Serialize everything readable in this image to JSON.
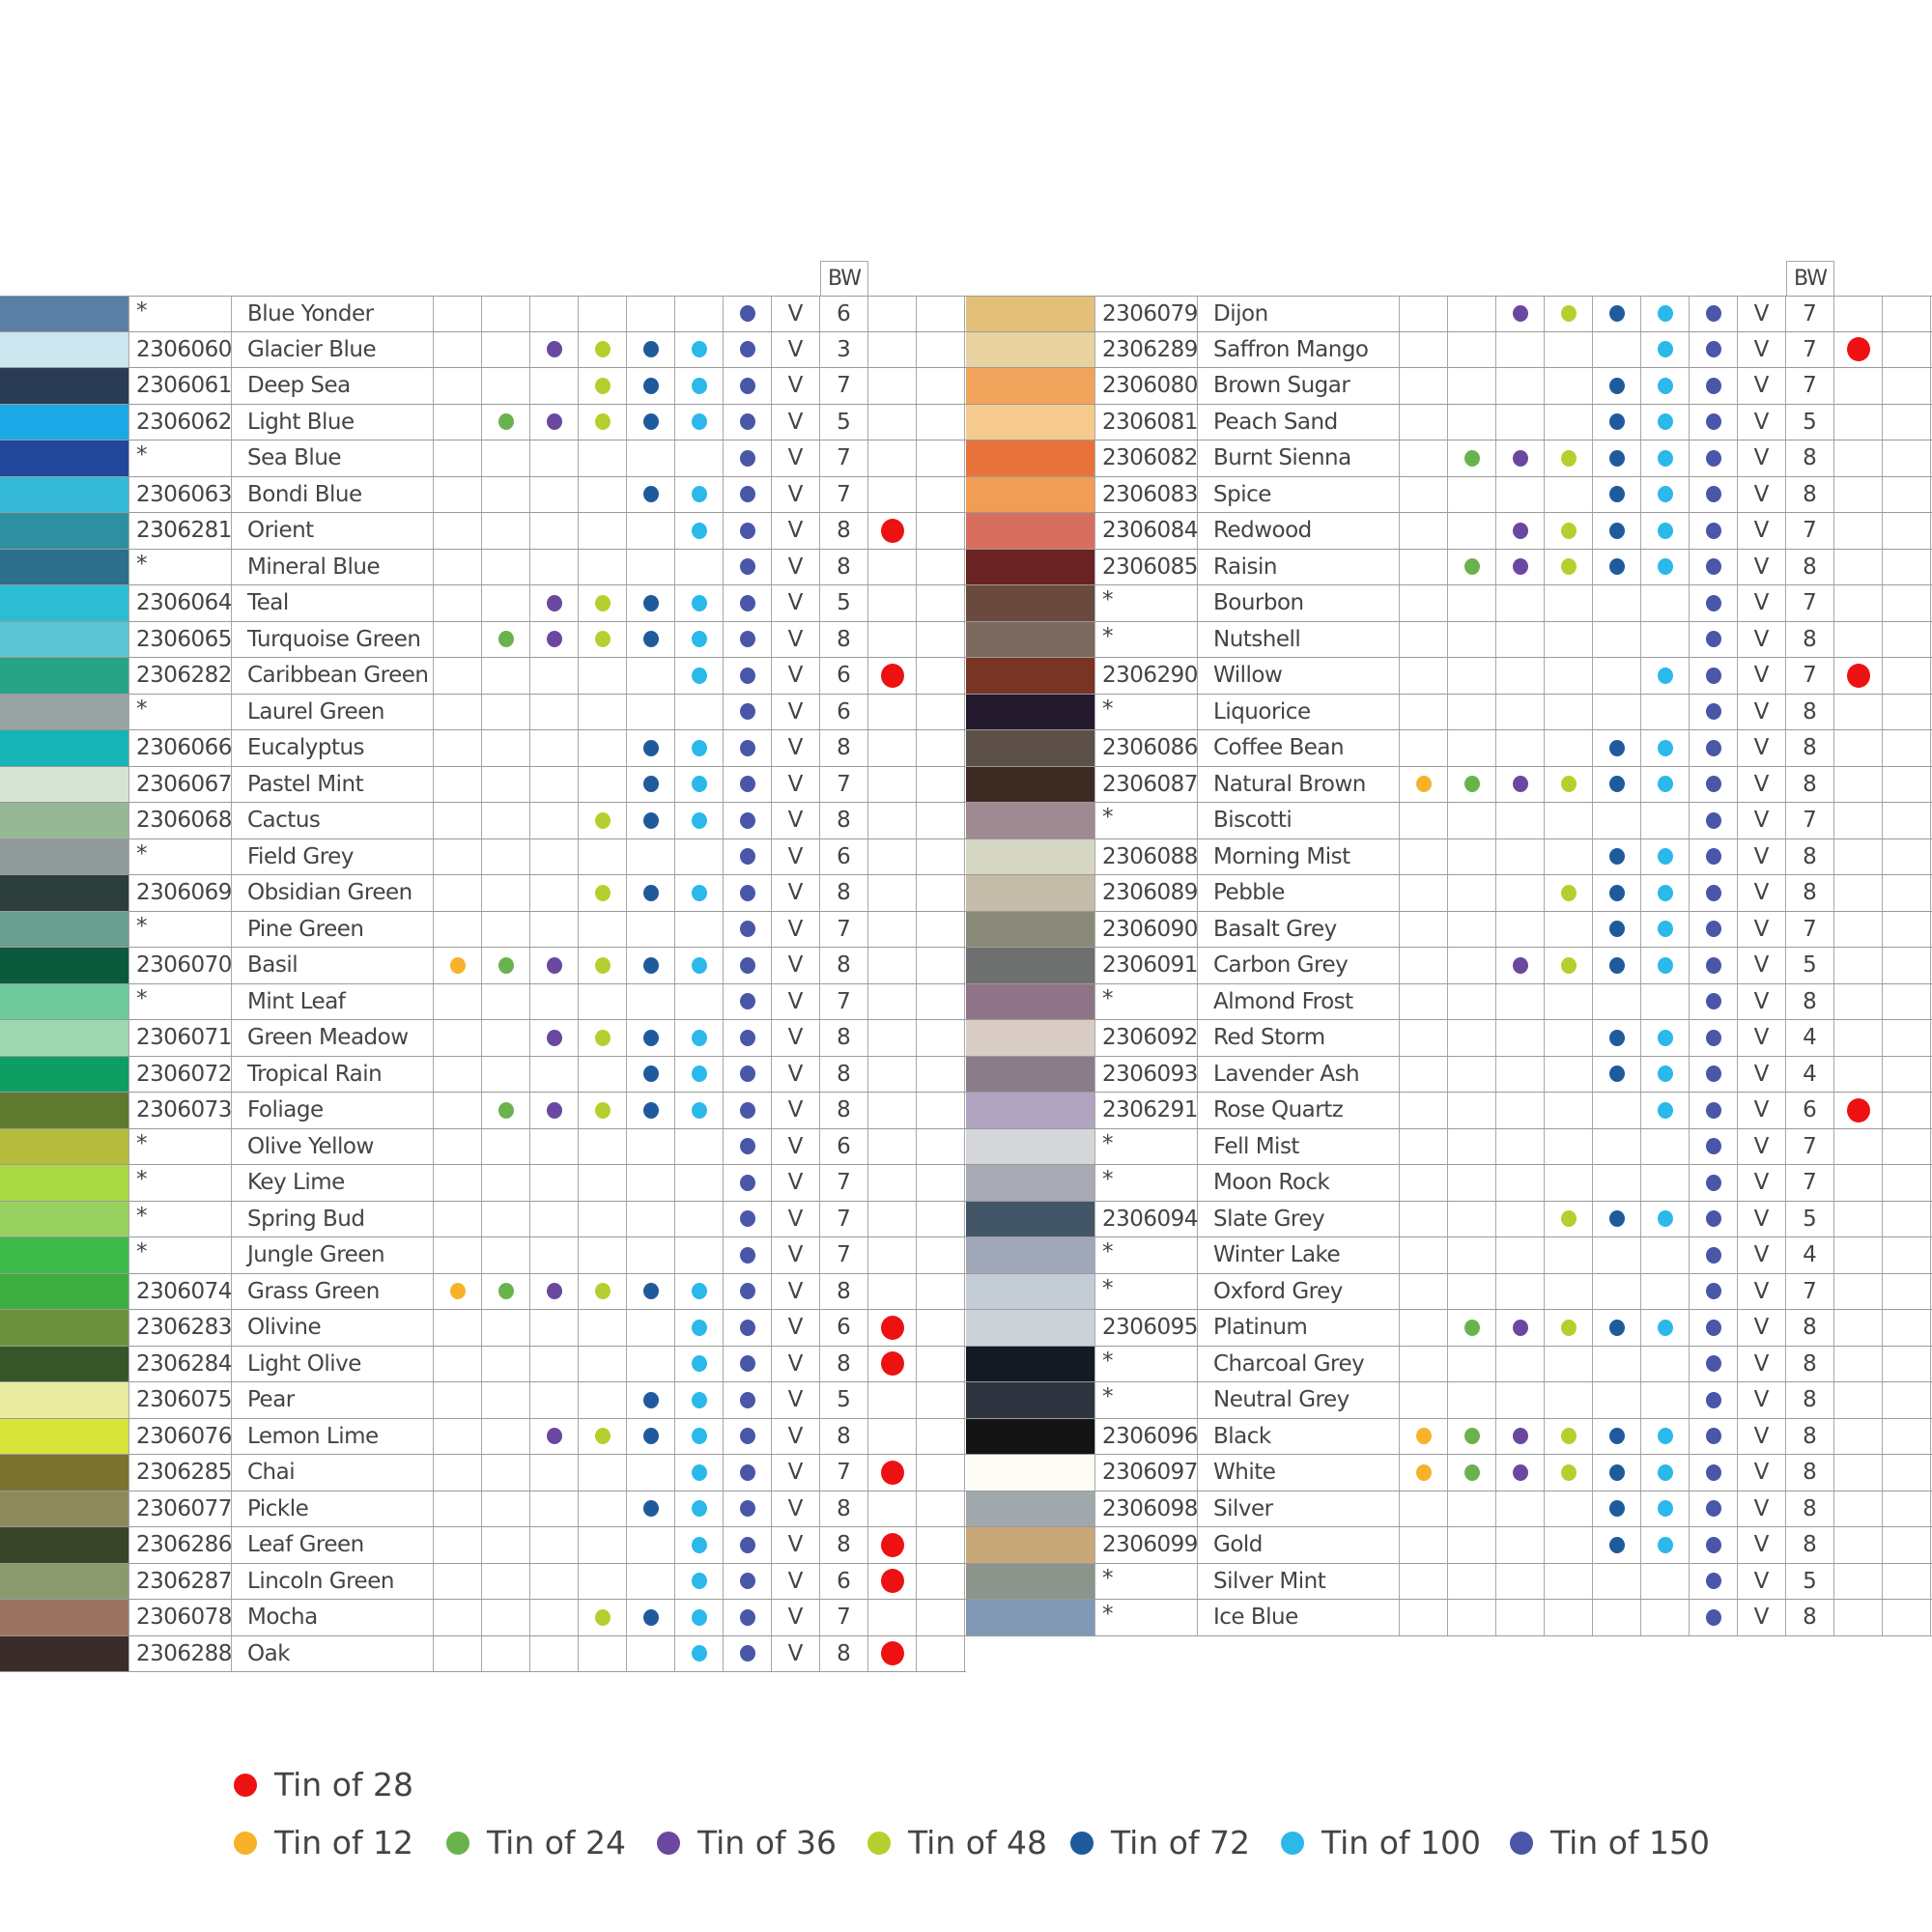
{
  "header": {
    "bw_label": "BW"
  },
  "tin_columns": [
    12,
    24,
    36,
    48,
    72,
    100,
    150
  ],
  "tin_colors": {
    "12": "#f7b22a",
    "24": "#6ab24e",
    "36": "#6a48a0",
    "48": "#b5cf2e",
    "72": "#1f5a9c",
    "100": "#2bb8ea",
    "150": "#4a56a8",
    "28": "#ee1111"
  },
  "legend": {
    "primary": {
      "tin": 28,
      "label": "Tin of 28"
    },
    "items": [
      {
        "tin": 12,
        "label": "Tin of 12"
      },
      {
        "tin": 24,
        "label": "Tin of 24"
      },
      {
        "tin": 36,
        "label": "Tin of 36"
      },
      {
        "tin": 48,
        "label": "Tin of 48"
      },
      {
        "tin": 72,
        "label": "Tin of 72"
      },
      {
        "tin": 100,
        "label": "Tin of 100"
      },
      {
        "tin": 150,
        "label": "Tin of 150"
      }
    ]
  },
  "left_table": [
    {
      "swatch": "#5a7fa6",
      "code": "*",
      "name": "Blue Yonder",
      "tins": [
        150
      ],
      "v": "V",
      "bw": "6"
    },
    {
      "swatch": "#cbe6ef",
      "code": "2306060",
      "name": "Glacier Blue",
      "tins": [
        36,
        48,
        72,
        100,
        150
      ],
      "v": "V",
      "bw": "3"
    },
    {
      "swatch": "#2a3c55",
      "code": "2306061",
      "name": "Deep Sea",
      "tins": [
        48,
        72,
        100,
        150
      ],
      "v": "V",
      "bw": "7"
    },
    {
      "swatch": "#1aa9e6",
      "code": "2306062",
      "name": "Light Blue",
      "tins": [
        24,
        36,
        48,
        72,
        100,
        150
      ],
      "v": "V",
      "bw": "5"
    },
    {
      "swatch": "#22479a",
      "code": "*",
      "name": "Sea Blue",
      "tins": [
        150
      ],
      "v": "V",
      "bw": "7"
    },
    {
      "swatch": "#35b9d8",
      "code": "2306063",
      "name": "Bondi Blue",
      "tins": [
        72,
        100,
        150
      ],
      "v": "V",
      "bw": "7"
    },
    {
      "swatch": "#2e8fa3",
      "code": "2306281",
      "name": "Orient",
      "tins": [
        100,
        150,
        28
      ],
      "v": "V",
      "bw": "8"
    },
    {
      "swatch": "#2c6e8c",
      "code": "*",
      "name": "Mineral Blue",
      "tins": [
        150
      ],
      "v": "V",
      "bw": "8"
    },
    {
      "swatch": "#2cbcd4",
      "code": "2306064",
      "name": "Teal",
      "tins": [
        36,
        48,
        72,
        100,
        150
      ],
      "v": "V",
      "bw": "5"
    },
    {
      "swatch": "#5cc5d4",
      "code": "2306065",
      "name": "Turquoise Green",
      "tins": [
        24,
        36,
        48,
        72,
        100,
        150
      ],
      "v": "V",
      "bw": "8"
    },
    {
      "swatch": "#27a486",
      "code": "2306282",
      "name": "Caribbean Green",
      "tins": [
        100,
        150,
        28
      ],
      "v": "V",
      "bw": "6"
    },
    {
      "swatch": "#9aa3a3",
      "code": "*",
      "name": "Laurel Green",
      "tins": [
        150
      ],
      "v": "V",
      "bw": "6"
    },
    {
      "swatch": "#15b5b5",
      "code": "2306066",
      "name": "Eucalyptus",
      "tins": [
        72,
        100,
        150
      ],
      "v": "V",
      "bw": "8"
    },
    {
      "swatch": "#d5e4d2",
      "code": "2306067",
      "name": "Pastel Mint",
      "tins": [
        72,
        100,
        150
      ],
      "v": "V",
      "bw": "7"
    },
    {
      "swatch": "#96b895",
      "code": "2306068",
      "name": "Cactus",
      "tins": [
        48,
        72,
        100,
        150
      ],
      "v": "V",
      "bw": "8"
    },
    {
      "swatch": "#8e9a9a",
      "code": "*",
      "name": "Field Grey",
      "tins": [
        150
      ],
      "v": "V",
      "bw": "6"
    },
    {
      "swatch": "#2c3e3b",
      "code": "2306069",
      "name": "Obsidian Green",
      "tins": [
        48,
        72,
        100,
        150
      ],
      "v": "V",
      "bw": "8"
    },
    {
      "swatch": "#6a9e8f",
      "code": "*",
      "name": "Pine Green",
      "tins": [
        150
      ],
      "v": "V",
      "bw": "7"
    },
    {
      "swatch": "#0c5a3e",
      "code": "2306070",
      "name": "Basil",
      "tins": [
        12,
        24,
        36,
        48,
        72,
        100,
        150
      ],
      "v": "V",
      "bw": "8"
    },
    {
      "swatch": "#6fca9b",
      "code": "*",
      "name": "Mint Leaf",
      "tins": [
        150
      ],
      "v": "V",
      "bw": "7"
    },
    {
      "swatch": "#9ed8b0",
      "code": "2306071",
      "name": "Green Meadow",
      "tins": [
        36,
        48,
        72,
        100,
        150
      ],
      "v": "V",
      "bw": "8"
    },
    {
      "swatch": "#0e9d63",
      "code": "2306072",
      "name": "Tropical Rain",
      "tins": [
        72,
        100,
        150
      ],
      "v": "V",
      "bw": "8"
    },
    {
      "swatch": "#5e7a2e",
      "code": "2306073",
      "name": "Foliage",
      "tins": [
        24,
        36,
        48,
        72,
        100,
        150
      ],
      "v": "V",
      "bw": "8"
    },
    {
      "swatch": "#b5bb3c",
      "code": "*",
      "name": "Olive Yellow",
      "tins": [
        150
      ],
      "v": "V",
      "bw": "6"
    },
    {
      "swatch": "#abd944",
      "code": "*",
      "name": "Key Lime",
      "tins": [
        150
      ],
      "v": "V",
      "bw": "7"
    },
    {
      "swatch": "#97d160",
      "code": "*",
      "name": "Spring Bud",
      "tins": [
        150
      ],
      "v": "V",
      "bw": "7"
    },
    {
      "swatch": "#3db94a",
      "code": "*",
      "name": "Jungle Green",
      "tins": [
        150
      ],
      "v": "V",
      "bw": "7"
    },
    {
      "swatch": "#3dae40",
      "code": "2306074",
      "name": "Grass Green",
      "tins": [
        12,
        24,
        36,
        48,
        72,
        100,
        150
      ],
      "v": "V",
      "bw": "8"
    },
    {
      "swatch": "#6e9140",
      "code": "2306283",
      "name": "Olivine",
      "tins": [
        100,
        150,
        28
      ],
      "v": "V",
      "bw": "6"
    },
    {
      "swatch": "#36562a",
      "code": "2306284",
      "name": "Light Olive",
      "tins": [
        100,
        150,
        28
      ],
      "v": "V",
      "bw": "8"
    },
    {
      "swatch": "#e9eba0",
      "code": "2306075",
      "name": "Pear",
      "tins": [
        72,
        100,
        150
      ],
      "v": "V",
      "bw": "5"
    },
    {
      "swatch": "#d9e43a",
      "code": "2306076",
      "name": "Lemon Lime",
      "tins": [
        36,
        48,
        72,
        100,
        150
      ],
      "v": "V",
      "bw": "8"
    },
    {
      "swatch": "#7c7330",
      "code": "2306285",
      "name": "Chai",
      "tins": [
        100,
        150,
        28
      ],
      "v": "V",
      "bw": "7"
    },
    {
      "swatch": "#8c8a5a",
      "code": "2306077",
      "name": "Pickle",
      "tins": [
        72,
        100,
        150
      ],
      "v": "V",
      "bw": "8"
    },
    {
      "swatch": "#3a4428",
      "code": "2306286",
      "name": "Leaf Green",
      "tins": [
        100,
        150,
        28
      ],
      "v": "V",
      "bw": "8"
    },
    {
      "swatch": "#8a9a6e",
      "code": "2306287",
      "name": "Lincoln Green",
      "tins": [
        100,
        150,
        28
      ],
      "v": "V",
      "bw": "6"
    },
    {
      "swatch": "#9a7460",
      "code": "2306078",
      "name": "Mocha",
      "tins": [
        48,
        72,
        100,
        150
      ],
      "v": "V",
      "bw": "7"
    },
    {
      "swatch": "#3a2c28",
      "code": "2306288",
      "name": "Oak",
      "tins": [
        100,
        150,
        28
      ],
      "v": "V",
      "bw": "8"
    }
  ],
  "right_table": [
    {
      "swatch": "#e3c07a",
      "code": "2306079",
      "name": "Dijon",
      "tins": [
        36,
        48,
        72,
        100,
        150
      ],
      "v": "V",
      "bw": "7"
    },
    {
      "swatch": "#e8d2a0",
      "code": "2306289",
      "name": "Saffron Mango",
      "tins": [
        100,
        150,
        28
      ],
      "v": "V",
      "bw": "7"
    },
    {
      "swatch": "#f0a35a",
      "code": "2306080",
      "name": "Brown Sugar",
      "tins": [
        72,
        100,
        150
      ],
      "v": "V",
      "bw": "7"
    },
    {
      "swatch": "#f6c98e",
      "code": "2306081",
      "name": "Peach Sand",
      "tins": [
        72,
        100,
        150
      ],
      "v": "V",
      "bw": "5"
    },
    {
      "swatch": "#e8733a",
      "code": "2306082",
      "name": "Burnt Sienna",
      "tins": [
        24,
        36,
        48,
        72,
        100,
        150
      ],
      "v": "V",
      "bw": "8"
    },
    {
      "swatch": "#f19d55",
      "code": "2306083",
      "name": "Spice",
      "tins": [
        72,
        100,
        150
      ],
      "v": "V",
      "bw": "8"
    },
    {
      "swatch": "#d86f5e",
      "code": "2306084",
      "name": "Redwood",
      "tins": [
        36,
        48,
        72,
        100,
        150
      ],
      "v": "V",
      "bw": "7"
    },
    {
      "swatch": "#6a2222",
      "code": "2306085",
      "name": "Raisin",
      "tins": [
        24,
        36,
        48,
        72,
        100,
        150
      ],
      "v": "V",
      "bw": "8"
    },
    {
      "swatch": "#6a4a3c",
      "code": "*",
      "name": "Bourbon",
      "tins": [
        150
      ],
      "v": "V",
      "bw": "7"
    },
    {
      "swatch": "#7a6a60",
      "code": "*",
      "name": "Nutshell",
      "tins": [
        150
      ],
      "v": "V",
      "bw": "8"
    },
    {
      "swatch": "#7a3424",
      "code": "2306290",
      "name": "Willow",
      "tins": [
        100,
        150,
        28
      ],
      "v": "V",
      "bw": "7"
    },
    {
      "swatch": "#221a2c",
      "code": "*",
      "name": "Liquorice",
      "tins": [
        150
      ],
      "v": "V",
      "bw": "8"
    },
    {
      "swatch": "#5c5048",
      "code": "2306086",
      "name": "Coffee Bean",
      "tins": [
        72,
        100,
        150
      ],
      "v": "V",
      "bw": "8"
    },
    {
      "swatch": "#3e2c24",
      "code": "2306087",
      "name": "Natural Brown",
      "tins": [
        12,
        24,
        36,
        48,
        72,
        100,
        150
      ],
      "v": "V",
      "bw": "8"
    },
    {
      "swatch": "#9e8a90",
      "code": "*",
      "name": "Biscotti",
      "tins": [
        150
      ],
      "v": "V",
      "bw": "7"
    },
    {
      "swatch": "#d6d6c4",
      "code": "2306088",
      "name": "Morning Mist",
      "tins": [
        72,
        100,
        150
      ],
      "v": "V",
      "bw": "8"
    },
    {
      "swatch": "#c4bca8",
      "code": "2306089",
      "name": "Pebble",
      "tins": [
        48,
        72,
        100,
        150
      ],
      "v": "V",
      "bw": "8"
    },
    {
      "swatch": "#8a8a7a",
      "code": "2306090",
      "name": "Basalt Grey",
      "tins": [
        72,
        100,
        150
      ],
      "v": "V",
      "bw": "7"
    },
    {
      "swatch": "#6e7070",
      "code": "2306091",
      "name": "Carbon Grey",
      "tins": [
        36,
        48,
        72,
        100,
        150
      ],
      "v": "V",
      "bw": "5"
    },
    {
      "swatch": "#8e7486",
      "code": "*",
      "name": "Almond Frost",
      "tins": [
        150
      ],
      "v": "V",
      "bw": "8"
    },
    {
      "swatch": "#d8ccc4",
      "code": "2306092",
      "name": "Red Storm",
      "tins": [
        72,
        100,
        150
      ],
      "v": "V",
      "bw": "4"
    },
    {
      "swatch": "#8a7c88",
      "code": "2306093",
      "name": "Lavender Ash",
      "tins": [
        72,
        100,
        150
      ],
      "v": "V",
      "bw": "4"
    },
    {
      "swatch": "#b0a4c0",
      "code": "2306291",
      "name": "Rose Quartz",
      "tins": [
        100,
        150,
        28
      ],
      "v": "V",
      "bw": "6"
    },
    {
      "swatch": "#d4d6da",
      "code": "*",
      "name": "Fell Mist",
      "tins": [
        150
      ],
      "v": "V",
      "bw": "7"
    },
    {
      "swatch": "#a8aab4",
      "code": "*",
      "name": "Moon Rock",
      "tins": [
        150
      ],
      "v": "V",
      "bw": "7"
    },
    {
      "swatch": "#435668",
      "code": "2306094",
      "name": "Slate Grey",
      "tins": [
        48,
        72,
        100,
        150
      ],
      "v": "V",
      "bw": "5"
    },
    {
      "swatch": "#a0a8b8",
      "code": "*",
      "name": "Winter Lake",
      "tins": [
        150
      ],
      "v": "V",
      "bw": "4"
    },
    {
      "swatch": "#c4ccd6",
      "code": "*",
      "name": "Oxford Grey",
      "tins": [
        150
      ],
      "v": "V",
      "bw": "7"
    },
    {
      "swatch": "#cdd2d6",
      "code": "2306095",
      "name": "Platinum",
      "tins": [
        24,
        36,
        48,
        72,
        100,
        150
      ],
      "v": "V",
      "bw": "8"
    },
    {
      "swatch": "#141a24",
      "code": "*",
      "name": "Charcoal Grey",
      "tins": [
        150
      ],
      "v": "V",
      "bw": "8"
    },
    {
      "swatch": "#2e3440",
      "code": "*",
      "name": "Neutral Grey",
      "tins": [
        150
      ],
      "v": "V",
      "bw": "8"
    },
    {
      "swatch": "#141414",
      "code": "2306096",
      "name": "Black",
      "tins": [
        12,
        24,
        36,
        48,
        72,
        100,
        150
      ],
      "v": "V",
      "bw": "8"
    },
    {
      "swatch": "#fdfcf6",
      "code": "2306097",
      "name": "White",
      "tins": [
        12,
        24,
        36,
        48,
        72,
        100,
        150
      ],
      "v": "V",
      "bw": "8"
    },
    {
      "swatch": "#a0a8ac",
      "code": "2306098",
      "name": "Silver",
      "tins": [
        72,
        100,
        150
      ],
      "v": "V",
      "bw": "8"
    },
    {
      "swatch": "#c8a878",
      "code": "2306099",
      "name": "Gold",
      "tins": [
        72,
        100,
        150
      ],
      "v": "V",
      "bw": "8"
    },
    {
      "swatch": "#8c948c",
      "code": "*",
      "name": "Silver Mint",
      "tins": [
        150
      ],
      "v": "V",
      "bw": "5"
    },
    {
      "swatch": "#8098b4",
      "code": "*",
      "name": "Ice Blue",
      "tins": [
        150
      ],
      "v": "V",
      "bw": "8"
    }
  ]
}
